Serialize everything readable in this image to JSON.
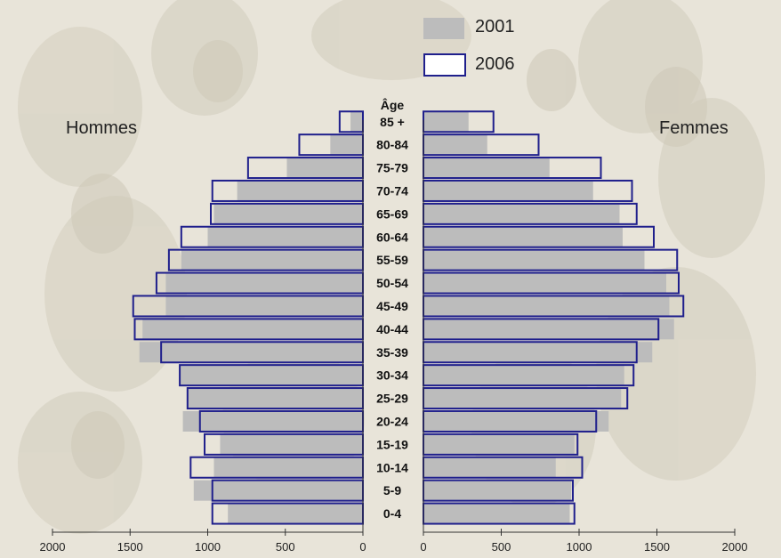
{
  "chart_data": {
    "type": "bar",
    "orientation": "horizontal",
    "layout": "population-pyramid",
    "age_axis_title": "Âge",
    "left_label": "Hommes",
    "right_label": "Femmes",
    "categories": [
      "0-4",
      "5-9",
      "10-14",
      "15-19",
      "20-24",
      "25-29",
      "30-34",
      "35-39",
      "40-44",
      "45-49",
      "50-54",
      "55-59",
      "60-64",
      "65-69",
      "70-74",
      "75-79",
      "80-84",
      "85 +"
    ],
    "xlim": [
      0,
      2000
    ],
    "xticks": [
      0,
      500,
      1000,
      1500,
      2000
    ],
    "xtick_labels": [
      "0",
      "500",
      "1000",
      "1500",
      "2000"
    ],
    "legend": [
      {
        "name": "2001",
        "style": "filled",
        "color": "#bcbcbc"
      },
      {
        "name": "2006",
        "style": "outline",
        "color": "#1f1f8c"
      }
    ],
    "series": [
      {
        "name": "2001",
        "side": "Hommes",
        "values": [
          870,
          1090,
          960,
          920,
          1160,
          1130,
          1180,
          1440,
          1420,
          1270,
          1270,
          1170,
          1000,
          960,
          810,
          490,
          210,
          80
        ]
      },
      {
        "name": "2006",
        "side": "Hommes",
        "values": [
          970,
          970,
          1110,
          1020,
          1050,
          1130,
          1180,
          1300,
          1470,
          1480,
          1330,
          1250,
          1170,
          980,
          970,
          740,
          410,
          150
        ]
      },
      {
        "name": "2001",
        "side": "Femmes",
        "values": [
          940,
          950,
          850,
          970,
          1190,
          1270,
          1290,
          1470,
          1610,
          1580,
          1560,
          1420,
          1280,
          1260,
          1090,
          810,
          410,
          290
        ]
      },
      {
        "name": "2006",
        "side": "Femmes",
        "values": [
          970,
          960,
          1020,
          990,
          1110,
          1310,
          1350,
          1370,
          1510,
          1670,
          1640,
          1630,
          1480,
          1370,
          1340,
          1140,
          740,
          450
        ]
      }
    ]
  },
  "colors": {
    "bar_2001": "#bcbcbc",
    "outline_2006": "#1f1f8c",
    "background": "#e7e3d8"
  }
}
